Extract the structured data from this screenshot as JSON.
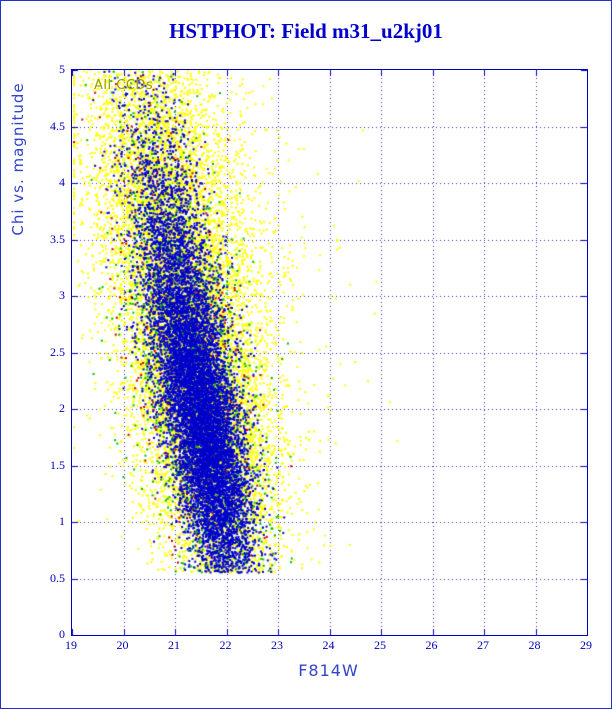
{
  "page": {
    "title": "HSTPHOT: Field m31_u2kj01"
  },
  "chart_data": {
    "type": "scatter",
    "title": "HSTPHOT: Field m31_u2kj01",
    "xlabel": "F814W",
    "ylabel": "Chi vs. magnitude",
    "annotation": "All CCDs",
    "xlim": [
      19,
      29
    ],
    "ylim": [
      0,
      5
    ],
    "x_tick_labels": [
      "19",
      "20",
      "21",
      "22",
      "23",
      "24",
      "25",
      "26",
      "27",
      "28",
      "29"
    ],
    "y_tick_labels": [
      "0",
      "0.5",
      "1",
      "1.5",
      "2",
      "2.5",
      "3",
      "3.5",
      "4",
      "4.5",
      "5"
    ],
    "grid": "dotted",
    "axis_color": "#0000bb",
    "grid_color": "#3333bb",
    "title_color": "#0000cc",
    "label_color": "#3344cc",
    "annotation_color": "#999900",
    "description": "Dense diagonal point cloud of photometric chi vs F814W magnitude; cloud runs from (x~20.3, chi~5) down to a tip near (x~22.7, chi~0.55), right edge reaching x~23.4 near chi~1; sparse yellow halo extends to x~24.5 at chi 2.5-5",
    "chi_range": [
      0.55,
      5.0
    ],
    "centerline": {
      "a": 22.25,
      "b": 0.38
    },
    "seed": 1234567,
    "series": [
      {
        "name": "yellow-main",
        "color": "#ffff00",
        "count": 8000,
        "chi_mean": 2.2,
        "chi_sd": 1.0,
        "x_sd": 0.7,
        "point_size": 2
      },
      {
        "name": "yellow-top",
        "color": "#ffff00",
        "count": 2600,
        "chi_mean": 4.1,
        "chi_sd": 0.75,
        "x_sd": 0.78,
        "point_size": 2
      },
      {
        "name": "yellow-halo",
        "color": "#ffff00",
        "count": 700,
        "chi_mean": 3.4,
        "chi_sd": 1.0,
        "x_sd": 0.15,
        "halo": true,
        "halo_scale": 1.3,
        "point_size": 2
      },
      {
        "name": "green-points",
        "color": "#00bb00",
        "count": 1500,
        "chi_mean": 2.2,
        "chi_sd": 1.1,
        "x_sd": 0.55,
        "point_size": 2
      },
      {
        "name": "red-points",
        "color": "#cc0000",
        "count": 500,
        "chi_mean": 2.3,
        "chi_sd": 1.15,
        "x_sd": 0.6,
        "point_size": 2
      },
      {
        "name": "blue-main",
        "color": "#0000cc",
        "count": 7500,
        "chi_mean": 1.8,
        "chi_sd": 0.75,
        "x_sd": 0.36,
        "point_size": 2
      },
      {
        "name": "blue-upper",
        "color": "#0000cc",
        "count": 2500,
        "chi_mean": 3.2,
        "chi_sd": 0.8,
        "x_sd": 0.42,
        "point_size": 2
      }
    ]
  }
}
